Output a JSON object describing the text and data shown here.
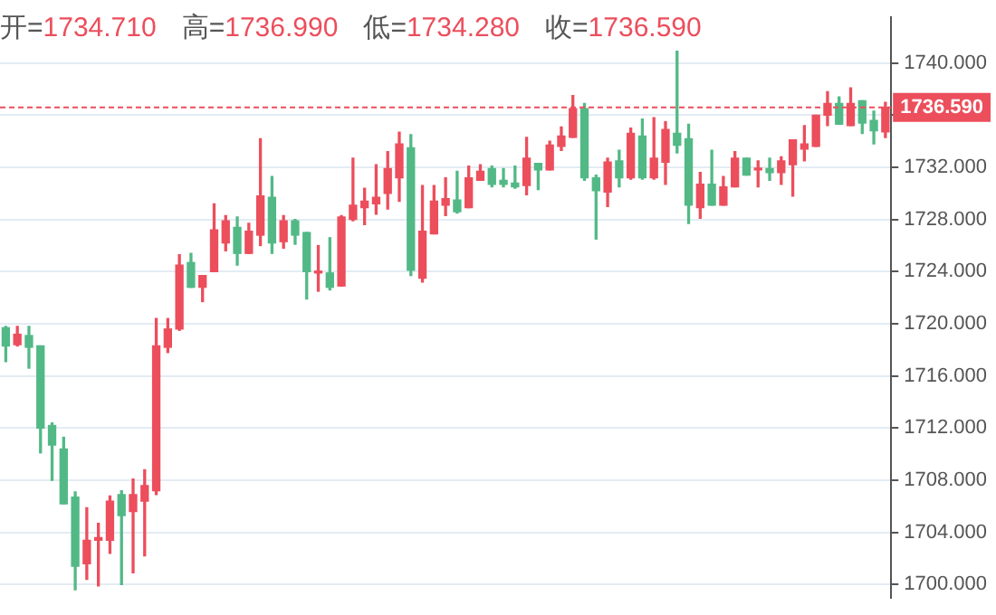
{
  "chart_data": {
    "type": "candlestick",
    "annotations": [
      "开=1734.710",
      "高=1736.990",
      "低=1734.280",
      "收=1736.590"
    ],
    "categories": [
      null,
      null,
      null,
      null,
      null,
      null,
      null,
      null,
      null,
      null,
      null,
      null,
      null,
      null,
      null,
      null,
      null,
      null,
      null,
      null,
      null,
      null,
      null,
      null,
      null,
      null,
      null,
      null,
      null,
      null,
      null,
      null,
      null,
      null,
      null,
      null,
      null,
      null,
      null,
      null,
      null,
      null,
      null,
      null,
      null,
      null,
      null,
      null,
      null,
      null,
      null,
      null,
      null,
      null,
      null,
      null,
      null,
      null,
      null,
      null,
      null,
      null,
      null,
      null,
      null,
      null,
      null,
      null,
      null,
      null,
      null,
      null,
      null,
      null,
      null,
      null,
      null
    ],
    "ohlc": [
      [
        1719.7,
        1719.8,
        1717.1,
        1718.3
      ],
      [
        1718.4,
        1719.8,
        1718.3,
        1719.2
      ],
      [
        1719.1,
        1719.8,
        1716.6,
        1718.2
      ],
      [
        1718.3,
        1718.3,
        1710.1,
        1712.0
      ],
      [
        1712.2,
        1712.4,
        1708.0,
        1710.7
      ],
      [
        1710.4,
        1711.3,
        1706.2,
        1706.2
      ],
      [
        1706.7,
        1707.1,
        1699.6,
        1701.4
      ],
      [
        1701.6,
        1705.9,
        1700.4,
        1703.4
      ],
      [
        1703.4,
        1704.7,
        1699.9,
        1703.6
      ],
      [
        1703.4,
        1706.8,
        1702.4,
        1706.4
      ],
      [
        1706.9,
        1707.2,
        1700.0,
        1705.3
      ],
      [
        1705.6,
        1708.1,
        1700.9,
        1706.9
      ],
      [
        1706.4,
        1708.8,
        1702.2,
        1707.6
      ],
      [
        1707.2,
        1720.4,
        1706.9,
        1718.3
      ],
      [
        1718.2,
        1720.4,
        1717.8,
        1719.6
      ],
      [
        1719.6,
        1725.3,
        1719.5,
        1724.5
      ],
      [
        1724.7,
        1725.4,
        1722.8,
        1722.8
      ],
      [
        1722.8,
        1723.7,
        1721.7,
        1723.7
      ],
      [
        1724.0,
        1729.2,
        1724.0,
        1727.2
      ],
      [
        1726.2,
        1728.3,
        1725.6,
        1727.9
      ],
      [
        1727.4,
        1728.2,
        1724.5,
        1725.4
      ],
      [
        1725.4,
        1727.7,
        1725.4,
        1727.1
      ],
      [
        1726.8,
        1734.2,
        1726.0,
        1729.8
      ],
      [
        1729.7,
        1731.3,
        1725.4,
        1726.2
      ],
      [
        1726.3,
        1728.3,
        1725.8,
        1727.9
      ],
      [
        1727.9,
        1728.0,
        1726.1,
        1726.8
      ],
      [
        1727.0,
        1727.0,
        1721.9,
        1724.0
      ],
      [
        1723.9,
        1726.0,
        1722.5,
        1724.0
      ],
      [
        1723.9,
        1726.6,
        1722.6,
        1722.8
      ],
      [
        1722.9,
        1728.3,
        1722.9,
        1728.2
      ],
      [
        1728.0,
        1732.7,
        1727.9,
        1729.1
      ],
      [
        1728.9,
        1730.4,
        1727.6,
        1729.4
      ],
      [
        1729.2,
        1732.2,
        1728.4,
        1729.7
      ],
      [
        1730.0,
        1733.2,
        1728.8,
        1731.9
      ],
      [
        1731.2,
        1734.7,
        1729.4,
        1733.8
      ],
      [
        1733.5,
        1734.5,
        1723.7,
        1724.1
      ],
      [
        1723.5,
        1730.6,
        1723.2,
        1727.1
      ],
      [
        1726.9,
        1730.6,
        1726.9,
        1729.4
      ],
      [
        1729.1,
        1731.2,
        1728.3,
        1729.6
      ],
      [
        1729.5,
        1731.7,
        1728.5,
        1728.6
      ],
      [
        1728.9,
        1732.1,
        1728.9,
        1731.2
      ],
      [
        1731.0,
        1732.2,
        1731.0,
        1731.7
      ],
      [
        1731.9,
        1732.1,
        1730.5,
        1730.7
      ],
      [
        1731.0,
        1731.9,
        1730.5,
        1730.7
      ],
      [
        1730.8,
        1732.1,
        1730.4,
        1730.5
      ],
      [
        1730.6,
        1734.3,
        1729.9,
        1732.7
      ],
      [
        1732.3,
        1732.3,
        1730.3,
        1731.8
      ],
      [
        1731.8,
        1734.0,
        1731.8,
        1733.7
      ],
      [
        1733.6,
        1735.1,
        1733.3,
        1734.4
      ],
      [
        1734.3,
        1737.5,
        1734.3,
        1736.5
      ],
      [
        1736.5,
        1736.9,
        1731.0,
        1731.2
      ],
      [
        1731.2,
        1731.4,
        1726.5,
        1730.2
      ],
      [
        1730.1,
        1732.7,
        1729.0,
        1732.4
      ],
      [
        1732.5,
        1733.3,
        1730.5,
        1731.2
      ],
      [
        1731.2,
        1735.0,
        1731.1,
        1734.6
      ],
      [
        1734.4,
        1735.7,
        1731.1,
        1731.2
      ],
      [
        1731.2,
        1735.8,
        1731.1,
        1732.7
      ],
      [
        1732.4,
        1735.5,
        1730.7,
        1734.9
      ],
      [
        1734.6,
        1740.9,
        1733.1,
        1733.7
      ],
      [
        1734.2,
        1735.3,
        1727.7,
        1729.1
      ],
      [
        1728.9,
        1731.6,
        1728.1,
        1730.7
      ],
      [
        1730.7,
        1733.3,
        1729.1,
        1729.1
      ],
      [
        1729.1,
        1731.3,
        1729.1,
        1730.5
      ],
      [
        1730.5,
        1733.2,
        1730.5,
        1732.7
      ],
      [
        1732.7,
        1732.7,
        1731.4,
        1731.4
      ],
      [
        1731.8,
        1732.5,
        1730.5,
        1731.9
      ],
      [
        1731.9,
        1732.7,
        1731.0,
        1731.6
      ],
      [
        1731.6,
        1732.8,
        1730.7,
        1732.5
      ],
      [
        1732.2,
        1734.1,
        1729.8,
        1734.1
      ],
      [
        1733.4,
        1735.2,
        1732.5,
        1733.8
      ],
      [
        1733.6,
        1736.0,
        1733.6,
        1736.0
      ],
      [
        1736.0,
        1737.8,
        1735.2,
        1736.9
      ],
      [
        1736.9,
        1737.4,
        1735.3,
        1735.3
      ],
      [
        1735.2,
        1738.1,
        1735.2,
        1736.9
      ],
      [
        1737.1,
        1737.1,
        1734.6,
        1735.4
      ],
      [
        1735.6,
        1736.3,
        1733.8,
        1734.8
      ],
      [
        1734.71,
        1736.99,
        1734.28,
        1736.59
      ]
    ],
    "colors": [
      "#52b986",
      "#ec4e5c",
      "#52b986",
      "#52b986",
      "#52b986",
      "#52b986",
      "#52b986",
      "#ec4e5c",
      "#ec4e5c",
      "#ec4e5c",
      "#52b986",
      "#ec4e5c",
      "#ec4e5c",
      "#ec4e5c",
      "#ec4e5c",
      "#ec4e5c",
      "#52b986",
      "#ec4e5c",
      "#ec4e5c",
      "#ec4e5c",
      "#52b986",
      "#ec4e5c",
      "#ec4e5c",
      "#52b986",
      "#ec4e5c",
      "#52b986",
      "#52b986",
      "#ec4e5c",
      "#52b986",
      "#ec4e5c",
      "#ec4e5c",
      "#ec4e5c",
      "#ec4e5c",
      "#ec4e5c",
      "#ec4e5c",
      "#52b986",
      "#ec4e5c",
      "#ec4e5c",
      "#ec4e5c",
      "#52b986",
      "#ec4e5c",
      "#ec4e5c",
      "#52b986",
      "#52b986",
      "#52b986",
      "#ec4e5c",
      "#52b986",
      "#ec4e5c",
      "#ec4e5c",
      "#ec4e5c",
      "#52b986",
      "#52b986",
      "#ec4e5c",
      "#52b986",
      "#ec4e5c",
      "#52b986",
      "#ec4e5c",
      "#ec4e5c",
      "#52b986",
      "#52b986",
      "#ec4e5c",
      "#52b986",
      "#ec4e5c",
      "#ec4e5c",
      "#52b986",
      "#ec4e5c",
      "#52b986",
      "#ec4e5c",
      "#ec4e5c",
      "#ec4e5c",
      "#ec4e5c",
      "#ec4e5c",
      "#52b986",
      "#ec4e5c",
      "#52b986",
      "#52b986",
      "#ec4e5c"
    ],
    "ylim": [
      1699,
      1743.5
    ],
    "yticks": [
      {
        "value": 1700,
        "label": "1700.000"
      },
      {
        "value": 1704,
        "label": "1704.000"
      },
      {
        "value": 1708,
        "label": "1708.000"
      },
      {
        "value": 1712,
        "label": "1712.000"
      },
      {
        "value": 1716,
        "label": "1716.000"
      },
      {
        "value": 1720,
        "label": "1720.000"
      },
      {
        "value": 1724,
        "label": "1724.000"
      },
      {
        "value": 1728,
        "label": "1728.000"
      },
      {
        "value": 1732,
        "label": "1732.000"
      },
      {
        "value": 1736,
        "label": null
      },
      {
        "value": 1740,
        "label": "1740.000"
      }
    ],
    "ref_lines": [
      {
        "axis": "y",
        "value": 1736.59,
        "label": "1736.590",
        "color": "#ec4e5c",
        "line_style": "dashed"
      }
    ],
    "grid": "y",
    "legend": false
  }
}
